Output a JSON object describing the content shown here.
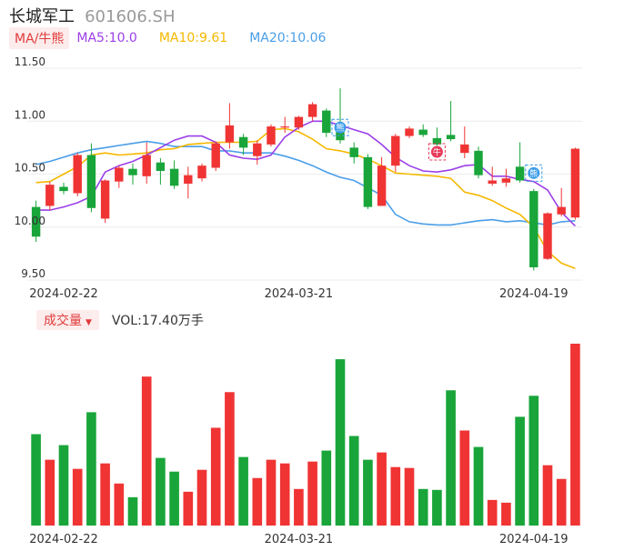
{
  "header": {
    "name": "长城军工",
    "code": "601606.SH"
  },
  "ma": {
    "tag": "MA/牛熊",
    "ma5": "MA5:10.0",
    "ma10": "MA10:9.61",
    "ma20": "MA20:10.06",
    "colors": {
      "ma5": "#9b3fe8",
      "ma10": "#f5b800",
      "ma20": "#4a9ee8"
    }
  },
  "volume": {
    "tag": "成交量",
    "text": "VOL:17.40万手"
  },
  "colors": {
    "up": "#f03434",
    "down": "#19a53a"
  },
  "markers": {
    "bull_label": "牛",
    "bear_label": "熊"
  },
  "chart_data": {
    "type": "candlestick",
    "y_ticks": [
      "11.50",
      "11.00",
      "10.50",
      "10.00",
      "9.50"
    ],
    "ylim": [
      9.5,
      11.5
    ],
    "x_ticks": [
      {
        "label": "2024-02-22",
        "index": 2
      },
      {
        "label": "2024-03-21",
        "index": 19
      },
      {
        "label": "2024-04-19",
        "index": 36
      }
    ],
    "candles": [
      {
        "o": 10.19,
        "c": 9.91,
        "h": 10.25,
        "l": 9.86
      },
      {
        "o": 10.2,
        "c": 10.4,
        "h": 10.43,
        "l": 10.16
      },
      {
        "o": 10.38,
        "c": 10.34,
        "h": 10.42,
        "l": 10.31
      },
      {
        "o": 10.32,
        "c": 10.68,
        "h": 10.7,
        "l": 10.29
      },
      {
        "o": 10.68,
        "c": 10.18,
        "h": 10.79,
        "l": 10.14
      },
      {
        "o": 10.08,
        "c": 10.44,
        "h": 10.45,
        "l": 10.04
      },
      {
        "o": 10.43,
        "c": 10.56,
        "h": 10.58,
        "l": 10.37
      },
      {
        "o": 10.55,
        "c": 10.49,
        "h": 10.6,
        "l": 10.4
      },
      {
        "o": 10.48,
        "c": 10.68,
        "h": 10.8,
        "l": 10.41
      },
      {
        "o": 10.61,
        "c": 10.53,
        "h": 10.65,
        "l": 10.4
      },
      {
        "o": 10.55,
        "c": 10.39,
        "h": 10.63,
        "l": 10.36
      },
      {
        "o": 10.41,
        "c": 10.49,
        "h": 10.57,
        "l": 10.27
      },
      {
        "o": 10.46,
        "c": 10.58,
        "h": 10.6,
        "l": 10.43
      },
      {
        "o": 10.56,
        "c": 10.79,
        "h": 10.81,
        "l": 10.53
      },
      {
        "o": 10.8,
        "c": 10.96,
        "h": 11.17,
        "l": 10.74
      },
      {
        "o": 10.85,
        "c": 10.75,
        "h": 10.88,
        "l": 10.68
      },
      {
        "o": 10.67,
        "c": 10.79,
        "h": 10.82,
        "l": 10.59
      },
      {
        "o": 10.78,
        "c": 10.95,
        "h": 10.97,
        "l": 10.76
      },
      {
        "o": 10.94,
        "c": 10.95,
        "h": 11.04,
        "l": 10.89
      },
      {
        "o": 10.94,
        "c": 11.04,
        "h": 11.05,
        "l": 10.92
      },
      {
        "o": 11.04,
        "c": 11.16,
        "h": 11.18,
        "l": 11.0
      },
      {
        "o": 11.1,
        "c": 10.89,
        "h": 11.12,
        "l": 10.85
      },
      {
        "o": 10.9,
        "c": 10.82,
        "h": 11.31,
        "l": 10.79
      },
      {
        "o": 10.75,
        "c": 10.66,
        "h": 10.8,
        "l": 10.6
      },
      {
        "o": 10.66,
        "c": 10.19,
        "h": 10.69,
        "l": 10.17
      },
      {
        "o": 10.2,
        "c": 10.58,
        "h": 10.66,
        "l": 10.2
      },
      {
        "o": 10.58,
        "c": 10.86,
        "h": 10.88,
        "l": 10.52
      },
      {
        "o": 10.86,
        "c": 10.93,
        "h": 10.95,
        "l": 10.84
      },
      {
        "o": 10.92,
        "c": 10.87,
        "h": 10.97,
        "l": 10.85
      },
      {
        "o": 10.84,
        "c": 10.78,
        "h": 10.94,
        "l": 10.77
      },
      {
        "o": 10.87,
        "c": 10.83,
        "h": 11.19,
        "l": 10.81
      },
      {
        "o": 10.7,
        "c": 10.78,
        "h": 10.95,
        "l": 10.65
      },
      {
        "o": 10.72,
        "c": 10.49,
        "h": 10.76,
        "l": 10.46
      },
      {
        "o": 10.41,
        "c": 10.44,
        "h": 10.57,
        "l": 10.39
      },
      {
        "o": 10.42,
        "c": 10.46,
        "h": 10.55,
        "l": 10.38
      },
      {
        "o": 10.57,
        "c": 10.44,
        "h": 10.8,
        "l": 10.42
      },
      {
        "o": 10.34,
        "c": 9.62,
        "h": 10.36,
        "l": 9.59
      },
      {
        "o": 9.7,
        "c": 10.13,
        "h": 10.14,
        "l": 9.69
      },
      {
        "o": 10.12,
        "c": 10.19,
        "h": 10.37,
        "l": 10.1
      },
      {
        "o": 10.09,
        "c": 10.74,
        "h": 10.75,
        "l": 10.07
      }
    ],
    "ma5": [
      10.16,
      10.16,
      10.19,
      10.23,
      10.29,
      10.52,
      10.58,
      10.62,
      10.68,
      10.75,
      10.82,
      10.86,
      10.86,
      10.8,
      10.68,
      10.65,
      10.64,
      10.68,
      10.85,
      10.94,
      11.0,
      11.0,
      10.96,
      10.92,
      10.88,
      10.78,
      10.66,
      10.58,
      10.53,
      10.52,
      10.54,
      10.58,
      10.59,
      10.48,
      10.48,
      10.45,
      10.43,
      10.35,
      10.14,
      10.01
    ],
    "ma10": [
      10.42,
      10.43,
      10.5,
      10.57,
      10.68,
      10.7,
      10.68,
      10.69,
      10.7,
      10.73,
      10.74,
      10.78,
      10.79,
      10.8,
      10.8,
      10.8,
      10.81,
      10.92,
      10.93,
      10.9,
      10.83,
      10.74,
      10.72,
      10.69,
      10.64,
      10.58,
      10.51,
      10.5,
      10.49,
      10.48,
      10.46,
      10.33,
      10.3,
      10.25,
      10.18,
      10.12,
      10.0,
      9.77,
      9.66,
      9.61
    ],
    "ma20": [
      10.59,
      10.62,
      10.66,
      10.7,
      10.73,
      10.75,
      10.77,
      10.79,
      10.81,
      10.79,
      10.76,
      10.76,
      10.76,
      10.72,
      10.72,
      10.7,
      10.7,
      10.7,
      10.67,
      10.63,
      10.58,
      10.52,
      10.47,
      10.44,
      10.37,
      10.3,
      10.12,
      10.05,
      10.03,
      10.02,
      10.02,
      10.04,
      10.06,
      10.07,
      10.05,
      10.06,
      10.04,
      10.02,
      10.05,
      10.06
    ],
    "volume": [
      100,
      72,
      88,
      62,
      124,
      68,
      46,
      31,
      163,
      74,
      59,
      37,
      61,
      107,
      146,
      75,
      52,
      72,
      68,
      40,
      70,
      82,
      182,
      98,
      72,
      80,
      64,
      63,
      40,
      39,
      148,
      104,
      86,
      28,
      25,
      119,
      142,
      66,
      51,
      199
    ],
    "markers": [
      {
        "index": 22,
        "type": "bear",
        "price": 10.94
      },
      {
        "index": 29,
        "type": "bull",
        "price": 10.71
      },
      {
        "index": 36,
        "type": "bear",
        "price": 10.51
      }
    ]
  }
}
